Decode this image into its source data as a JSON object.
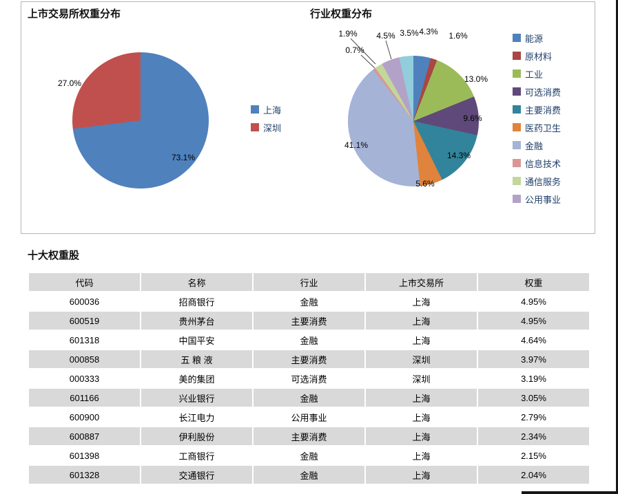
{
  "page": {
    "charts_panel": {
      "exchange_chart": {
        "title": "上市交易所权重分布",
        "slices": [
          {
            "name": "上海",
            "value": 73.1,
            "color": "#4F81BD"
          },
          {
            "name": "深圳",
            "value": 27.0,
            "color": "#C0504D"
          }
        ]
      },
      "industry_chart": {
        "title": "行业权重分布",
        "slices": [
          {
            "name": "能源",
            "value": 4.3,
            "color": "#4F81BD"
          },
          {
            "name": "原材料",
            "value": 1.6,
            "color": "#AA4643"
          },
          {
            "name": "工业",
            "value": 13.0,
            "color": "#9BBB59"
          },
          {
            "name": "可选消费",
            "value": 9.6,
            "color": "#5F497A"
          },
          {
            "name": "主要消费",
            "value": 14.3,
            "color": "#31849B"
          },
          {
            "name": "医药卫生",
            "value": 5.6,
            "color": "#E0833C"
          },
          {
            "name": "金融",
            "value": 41.1,
            "color": "#A5B3D7"
          },
          {
            "name": "信息技术",
            "value": 0.7,
            "color": "#D99694"
          },
          {
            "name": "通信服务",
            "value": 1.9,
            "color": "#C3D69B"
          },
          {
            "name": "公用事业",
            "value": 4.5,
            "color": "#B3A2C7"
          },
          {
            "name": "",
            "value": 3.5,
            "color": "#92CDDC"
          }
        ]
      }
    },
    "holdings": {
      "title": "十大权重股",
      "columns": [
        "代码",
        "名称",
        "行业",
        "上市交易所",
        "权重"
      ],
      "rows": [
        [
          "600036",
          "招商银行",
          "金融",
          "上海",
          "4.95%"
        ],
        [
          "600519",
          "贵州茅台",
          "主要消费",
          "上海",
          "4.95%"
        ],
        [
          "601318",
          "中国平安",
          "金融",
          "上海",
          "4.64%"
        ],
        [
          "000858",
          "五 粮 液",
          "主要消费",
          "深圳",
          "3.97%"
        ],
        [
          "000333",
          "美的集团",
          "可选消费",
          "深圳",
          "3.19%"
        ],
        [
          "601166",
          "兴业银行",
          "金融",
          "上海",
          "3.05%"
        ],
        [
          "600900",
          "长江电力",
          "公用事业",
          "上海",
          "2.79%"
        ],
        [
          "600887",
          "伊利股份",
          "主要消费",
          "上海",
          "2.34%"
        ],
        [
          "601398",
          "工商银行",
          "金融",
          "上海",
          "2.15%"
        ],
        [
          "601328",
          "交通银行",
          "金融",
          "上海",
          "2.04%"
        ]
      ]
    },
    "colors": {
      "row_shade": "#D9D9D9",
      "page_edge": "#161616"
    }
  },
  "chart_data": [
    {
      "type": "pie",
      "title": "上市交易所权重分布",
      "labels": [
        "上海",
        "深圳"
      ],
      "values": [
        73.1,
        27.0
      ],
      "unit": "%",
      "legend_position": "right"
    },
    {
      "type": "pie",
      "title": "行业权重分布",
      "labels": [
        "能源",
        "原材料",
        "工业",
        "可选消费",
        "主要消费",
        "医药卫生",
        "金融",
        "信息技术",
        "通信服务",
        "公用事业",
        ""
      ],
      "values": [
        4.3,
        1.6,
        13.0,
        9.6,
        14.3,
        5.6,
        41.1,
        0.7,
        1.9,
        4.5,
        3.5
      ],
      "unit": "%",
      "legend_position": "right"
    },
    {
      "type": "table",
      "title": "十大权重股",
      "columns": [
        "代码",
        "名称",
        "行业",
        "上市交易所",
        "权重"
      ],
      "rows": [
        [
          "600036",
          "招商银行",
          "金融",
          "上海",
          "4.95%"
        ],
        [
          "600519",
          "贵州茅台",
          "主要消费",
          "上海",
          "4.95%"
        ],
        [
          "601318",
          "中国平安",
          "金融",
          "上海",
          "4.64%"
        ],
        [
          "000858",
          "五 粮 液",
          "主要消费",
          "深圳",
          "3.97%"
        ],
        [
          "000333",
          "美的集团",
          "可选消费",
          "深圳",
          "3.19%"
        ],
        [
          "601166",
          "兴业银行",
          "金融",
          "上海",
          "3.05%"
        ],
        [
          "600900",
          "长江电力",
          "公用事业",
          "上海",
          "2.79%"
        ],
        [
          "600887",
          "伊利股份",
          "主要消费",
          "上海",
          "2.34%"
        ],
        [
          "601398",
          "工商银行",
          "金融",
          "上海",
          "2.15%"
        ],
        [
          "601328",
          "交通银行",
          "金融",
          "上海",
          "2.04%"
        ]
      ]
    }
  ]
}
